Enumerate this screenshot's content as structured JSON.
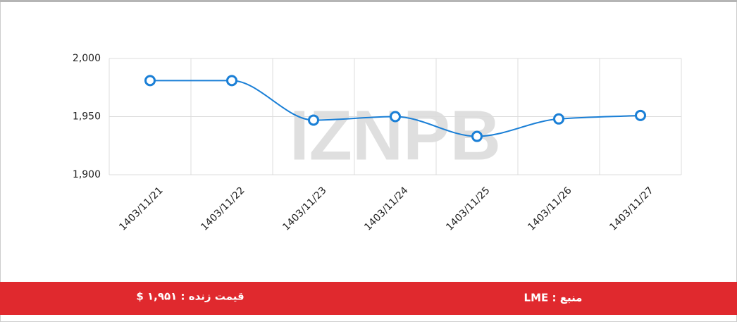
{
  "chart_data": {
    "type": "line",
    "categories": [
      "1403/11/21",
      "1403/11/22",
      "1403/11/23",
      "1403/11/24",
      "1403/11/25",
      "1403/11/26",
      "1403/11/27"
    ],
    "values": [
      1981,
      1981,
      1947,
      1950,
      1933,
      1948,
      1951
    ],
    "color": "#1a7fd6",
    "ylim": [
      1900,
      2000
    ],
    "yticks": [
      {
        "value": 1900,
        "label": "1,900"
      },
      {
        "value": 1950,
        "label": "1,950"
      },
      {
        "value": 2000,
        "label": "2,000"
      }
    ],
    "grid": true,
    "smooth": true,
    "watermark": "IZNPB"
  },
  "footer": {
    "source": "منبع : LME",
    "live_price": "قیمت زنده : ۱,۹۵۱ $"
  }
}
